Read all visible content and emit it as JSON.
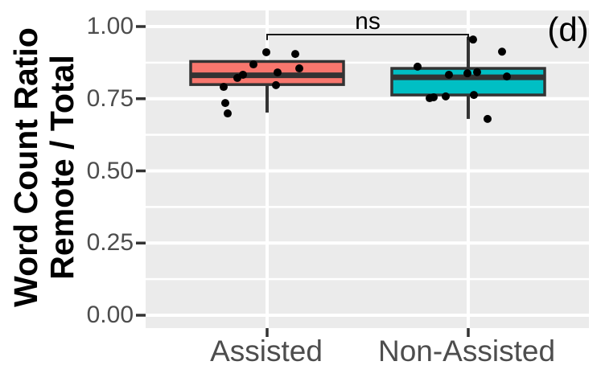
{
  "chart_data": {
    "type": "boxplot",
    "panel_label": "(d)",
    "ylabel_line1": "Word Count Ratio",
    "ylabel_line2": "Remote / Total",
    "ylabel": "Word Count Ratio Remote / Total",
    "categories": [
      "Assisted",
      "Non-Assisted"
    ],
    "ytick_labels": [
      "1.00",
      "0.75",
      "0.50",
      "0.25",
      "0.00"
    ],
    "ytick_values": [
      1.0,
      0.75,
      0.5,
      0.25,
      0.0
    ],
    "minor_ytick_values": [
      0.875,
      0.625,
      0.375,
      0.125
    ],
    "ylim": [
      -0.045,
      1.056
    ],
    "grid": true,
    "legend": "none",
    "significance": {
      "label": "ns",
      "from": "Assisted",
      "to": "Non-Assisted",
      "bar_y": 0.972,
      "tick_bottom_y": 0.953
    },
    "series": [
      {
        "name": "Assisted",
        "fill": "#F8766D",
        "box": {
          "whisker_low": 0.702,
          "q1": 0.799,
          "median": 0.831,
          "q3": 0.879,
          "whisker_high": 0.879
        },
        "points": [
          {
            "dx": -1,
            "y": 0.911
          },
          {
            "dx": 35,
            "y": 0.905
          },
          {
            "dx": -17,
            "y": 0.869
          },
          {
            "dx": 40,
            "y": 0.855
          },
          {
            "dx": 13,
            "y": 0.841
          },
          {
            "dx": -30,
            "y": 0.833
          },
          {
            "dx": -37,
            "y": 0.822
          },
          {
            "dx": 11,
            "y": 0.797
          },
          {
            "dx": -54,
            "y": 0.791
          },
          {
            "dx": -52,
            "y": 0.735
          },
          {
            "dx": -49,
            "y": 0.699
          }
        ]
      },
      {
        "name": "Non-Assisted",
        "fill": "#00BFC4",
        "box": {
          "whisker_low": 0.68,
          "q1": 0.763,
          "median": 0.824,
          "q3": 0.855,
          "whisker_high": 0.965
        },
        "points": [
          {
            "dx": 6,
            "y": 0.955
          },
          {
            "dx": 42,
            "y": 0.913
          },
          {
            "dx": -63,
            "y": 0.861
          },
          {
            "dx": -24,
            "y": 0.833
          },
          {
            "dx": -1,
            "y": 0.838
          },
          {
            "dx": 11,
            "y": 0.842
          },
          {
            "dx": 48,
            "y": 0.827
          },
          {
            "dx": -48,
            "y": 0.752
          },
          {
            "dx": -43,
            "y": 0.755
          },
          {
            "dx": -28,
            "y": 0.758
          },
          {
            "dx": 7,
            "y": 0.763
          },
          {
            "dx": 24,
            "y": 0.68
          }
        ]
      }
    ],
    "colors": {
      "assisted_fill": "#F8766D",
      "non_assisted_fill": "#00BFC4",
      "box_border": "#333333",
      "median_line": "#333333",
      "points": "#000000",
      "axis_text": "#4D4D4D",
      "panel_background": "#EBEBEB",
      "gridline": "#FFFFFF",
      "tick_mark": "#333333",
      "significance_line": "#1A1A1A"
    }
  }
}
